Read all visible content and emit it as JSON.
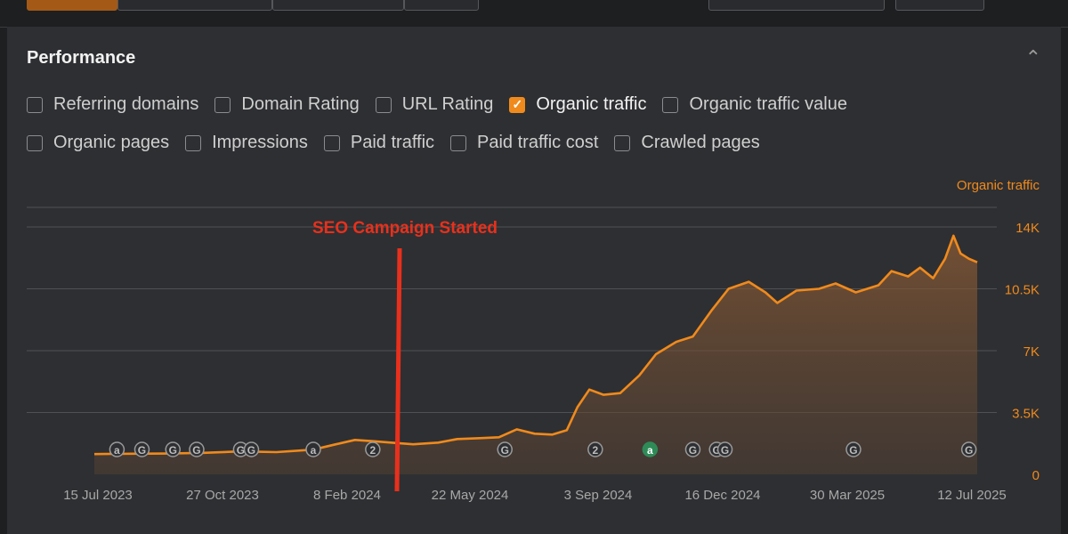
{
  "panel": {
    "title": "Performance"
  },
  "metrics_row1": [
    {
      "label": "Referring domains",
      "checked": false
    },
    {
      "label": "Domain Rating",
      "checked": false
    },
    {
      "label": "URL Rating",
      "checked": false
    },
    {
      "label": "Organic traffic",
      "checked": true
    },
    {
      "label": "Organic traffic value",
      "checked": false
    }
  ],
  "metrics_row2": [
    {
      "label": "Organic pages",
      "checked": false
    },
    {
      "label": "Impressions",
      "checked": false
    },
    {
      "label": "Paid traffic",
      "checked": false
    },
    {
      "label": "Paid traffic cost",
      "checked": false
    },
    {
      "label": "Crawled pages",
      "checked": false
    }
  ],
  "colors": {
    "accent": "#f08a1c",
    "annotation": "#e8301c"
  },
  "chart_data": {
    "type": "area",
    "series_name": "Organic traffic",
    "axis_title": "Organic traffic",
    "y_ticks": [
      "0",
      "3.5K",
      "7K",
      "10.5K",
      "14K"
    ],
    "ylim": [
      0,
      14000
    ],
    "x_ticks": [
      "15 Jul 2023",
      "27 Oct 2023",
      "8 Feb 2024",
      "22 May 2024",
      "3 Sep 2024",
      "16 Dec 2024",
      "30 Mar 2025",
      "12 Jul 2025"
    ],
    "x_start": "2023-07-01",
    "x_end": "2025-07-15",
    "points": [
      {
        "d": "2023-07-01",
        "v": 1150
      },
      {
        "d": "2023-08-01",
        "v": 1170
      },
      {
        "d": "2023-09-01",
        "v": 1180
      },
      {
        "d": "2023-10-01",
        "v": 1220
      },
      {
        "d": "2023-11-01",
        "v": 1300
      },
      {
        "d": "2023-12-01",
        "v": 1260
      },
      {
        "d": "2024-01-01",
        "v": 1400
      },
      {
        "d": "2024-01-20",
        "v": 1700
      },
      {
        "d": "2024-02-05",
        "v": 1950
      },
      {
        "d": "2024-02-20",
        "v": 1880
      },
      {
        "d": "2024-03-10",
        "v": 1780
      },
      {
        "d": "2024-03-25",
        "v": 1700
      },
      {
        "d": "2024-04-15",
        "v": 1800
      },
      {
        "d": "2024-05-01",
        "v": 2000
      },
      {
        "d": "2024-05-20",
        "v": 2050
      },
      {
        "d": "2024-06-05",
        "v": 2100
      },
      {
        "d": "2024-06-20",
        "v": 2550
      },
      {
        "d": "2024-07-05",
        "v": 2300
      },
      {
        "d": "2024-07-20",
        "v": 2250
      },
      {
        "d": "2024-08-01",
        "v": 2500
      },
      {
        "d": "2024-08-10",
        "v": 3800
      },
      {
        "d": "2024-08-20",
        "v": 4800
      },
      {
        "d": "2024-09-01",
        "v": 4500
      },
      {
        "d": "2024-09-15",
        "v": 4600
      },
      {
        "d": "2024-10-01",
        "v": 5600
      },
      {
        "d": "2024-10-15",
        "v": 6800
      },
      {
        "d": "2024-11-01",
        "v": 7500
      },
      {
        "d": "2024-11-15",
        "v": 7800
      },
      {
        "d": "2024-12-01",
        "v": 9300
      },
      {
        "d": "2024-12-15",
        "v": 10500
      },
      {
        "d": "2025-01-01",
        "v": 10900
      },
      {
        "d": "2025-01-15",
        "v": 10300
      },
      {
        "d": "2025-01-25",
        "v": 9700
      },
      {
        "d": "2025-02-10",
        "v": 10400
      },
      {
        "d": "2025-03-01",
        "v": 10500
      },
      {
        "d": "2025-03-15",
        "v": 10800
      },
      {
        "d": "2025-04-01",
        "v": 10300
      },
      {
        "d": "2025-04-20",
        "v": 10700
      },
      {
        "d": "2025-05-01",
        "v": 11500
      },
      {
        "d": "2025-05-15",
        "v": 11200
      },
      {
        "d": "2025-05-25",
        "v": 11700
      },
      {
        "d": "2025-06-05",
        "v": 11100
      },
      {
        "d": "2025-06-15",
        "v": 12200
      },
      {
        "d": "2025-06-22",
        "v": 13500
      },
      {
        "d": "2025-06-28",
        "v": 12500
      },
      {
        "d": "2025-07-05",
        "v": 12200
      },
      {
        "d": "2025-07-12",
        "v": 12000
      }
    ],
    "annotation": {
      "label": "SEO Campaign Started",
      "date": "2024-03-01"
    },
    "event_markers": [
      {
        "d": "2023-07-20",
        "label": "a"
      },
      {
        "d": "2023-08-10",
        "label": "G"
      },
      {
        "d": "2023-09-05",
        "label": "G"
      },
      {
        "d": "2023-09-25",
        "label": "G"
      },
      {
        "d": "2023-11-01",
        "label": "G"
      },
      {
        "d": "2023-11-10",
        "label": "G"
      },
      {
        "d": "2024-01-01",
        "label": "a"
      },
      {
        "d": "2024-02-20",
        "label": "2"
      },
      {
        "d": "2024-06-10",
        "label": "G"
      },
      {
        "d": "2024-08-25",
        "label": "2"
      },
      {
        "d": "2024-10-10",
        "label": "a"
      },
      {
        "d": "2024-11-15",
        "label": "G"
      },
      {
        "d": "2024-12-05",
        "label": "G"
      },
      {
        "d": "2024-12-12",
        "label": "G"
      },
      {
        "d": "2025-03-30",
        "label": "G"
      },
      {
        "d": "2025-07-05",
        "label": "G"
      }
    ]
  }
}
